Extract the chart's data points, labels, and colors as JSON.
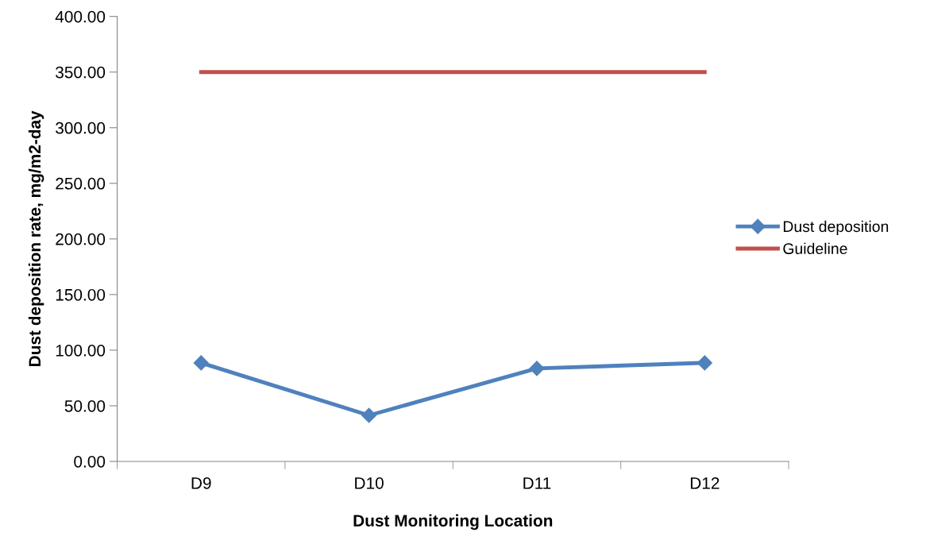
{
  "chart_data": {
    "type": "line",
    "xlabel": "Dust Monitoring Location",
    "ylabel": "Dust deposition rate, mg/m2-day",
    "categories": [
      "D9",
      "D10",
      "D11",
      "D12"
    ],
    "series": [
      {
        "name": "Dust deposition",
        "color": "#4f81bd",
        "marker": "diamond",
        "values": [
          88.6,
          41.4,
          83.6,
          88.6
        ]
      },
      {
        "name": "Guideline",
        "color": "#c0504d",
        "marker": "none",
        "values": [
          350,
          350,
          350,
          350
        ]
      }
    ],
    "ylim": [
      0,
      400
    ],
    "yticks": [
      {
        "value": 0,
        "label": "0.00"
      },
      {
        "value": 50,
        "label": "50.00"
      },
      {
        "value": 100,
        "label": "100.00"
      },
      {
        "value": 150,
        "label": "150.00"
      },
      {
        "value": 200,
        "label": "200.00"
      },
      {
        "value": 250,
        "label": "250.00"
      },
      {
        "value": 300,
        "label": "300.00"
      },
      {
        "value": 350,
        "label": "350.00"
      },
      {
        "value": 400,
        "label": "400.00"
      }
    ],
    "grid": false,
    "legend": "right",
    "line_style": "solid"
  }
}
